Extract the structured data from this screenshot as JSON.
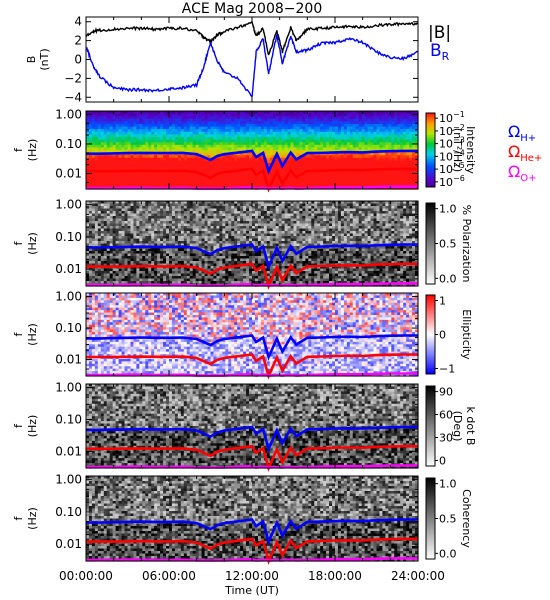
{
  "title": "ACE Mag 2008−200",
  "x_axis": {
    "label": "Time (UT)",
    "ticks": [
      "00:00:00",
      "06:00:00",
      "12:00:00",
      "18:00:00",
      "24:00:00"
    ],
    "range_hours": [
      0,
      24
    ]
  },
  "colors": {
    "B_total": "#000000",
    "B_R": "#0000ff",
    "H_gyro": "#0000ff",
    "He_gyro": "#ff0000",
    "O_gyro": "#ff00ff"
  },
  "chart_data": [
    {
      "type": "line",
      "panel": "field",
      "ylabel": [
        "B",
        "(nT)"
      ],
      "yticks": [
        "4",
        "2",
        "0",
        "−2",
        "−4"
      ],
      "ylim": [
        -4.5,
        4.5
      ],
      "legend": [
        {
          "label": "|B|",
          "color": "#000000"
        },
        {
          "label": "B",
          "sub": "R",
          "color": "#0000ff"
        }
      ],
      "series": [
        {
          "name": "|B|",
          "x": [
            0,
            0.5,
            1,
            2,
            3,
            4,
            5,
            6,
            7,
            8,
            8.5,
            9,
            9.5,
            10,
            11,
            12,
            12.3,
            12.8,
            13.2,
            13.8,
            14.2,
            14.8,
            15.2,
            16,
            17,
            18,
            19,
            20,
            21,
            22,
            23,
            24
          ],
          "y": [
            2.4,
            3.0,
            3.1,
            3.2,
            3.3,
            3.3,
            3.2,
            3.3,
            3.3,
            3.0,
            2.4,
            1.9,
            2.6,
            3.0,
            3.4,
            3.9,
            2.5,
            3.3,
            0.5,
            3.0,
            0.8,
            3.4,
            2.0,
            3.2,
            3.3,
            3.4,
            3.5,
            3.4,
            3.6,
            3.7,
            3.8,
            3.8
          ]
        },
        {
          "name": "B_R",
          "x": [
            0,
            0.5,
            1,
            2,
            3,
            4,
            5,
            6,
            7,
            8,
            8.5,
            9,
            9.5,
            10,
            11,
            12,
            12.3,
            12.8,
            13.2,
            13.8,
            14.2,
            14.8,
            15.2,
            16,
            17,
            18,
            19,
            20,
            21,
            22,
            23,
            24
          ],
          "y": [
            1.4,
            -0.6,
            -1.8,
            -3.0,
            -3.2,
            -3.2,
            -3.3,
            -3.1,
            -3.0,
            -2.7,
            -0.8,
            1.8,
            -0.2,
            -1.4,
            -2.0,
            -4.0,
            0.8,
            2.2,
            -1.5,
            2.6,
            -0.4,
            2.4,
            0.8,
            1.0,
            1.7,
            1.8,
            2.2,
            1.8,
            0.8,
            0.2,
            0.1,
            0.8
          ]
        }
      ]
    },
    {
      "type": "heatmap",
      "panel": "power",
      "ylabel": [
        "f",
        "(Hz)"
      ],
      "yticks": [
        "1.00",
        "0.10",
        "0.01"
      ],
      "ylim_hz": [
        0.003,
        1.3
      ],
      "yscale": "log",
      "colorbar": {
        "label": "Intensity",
        "label2": "(nT²/Hz)",
        "ticks": [
          {
            "base": "10",
            "exp": "−1"
          },
          {
            "base": "10",
            "exp": "−2"
          },
          {
            "base": "10",
            "exp": "−3"
          },
          {
            "base": "10",
            "exp": "−4"
          },
          {
            "base": "10",
            "exp": "−5"
          },
          {
            "base": "10",
            "exp": "−6"
          }
        ],
        "colormap": "rainbow"
      },
      "legend": [
        {
          "label": "Ω",
          "sub": "H+",
          "color": "#0000ff"
        },
        {
          "label": "Ω",
          "sub": "He+",
          "color": "#ff0000"
        },
        {
          "label": "Ω",
          "sub": "O+",
          "color": "#ff00ff"
        }
      ]
    },
    {
      "type": "heatmap",
      "panel": "polarization",
      "ylabel": [
        "f",
        "(Hz)"
      ],
      "yticks": [
        "1.00",
        "0.10",
        "0.01"
      ],
      "colorbar": {
        "label": "% Polarization",
        "ticks": [
          "1.0",
          "0.5",
          "0.0"
        ],
        "colormap": "grey"
      }
    },
    {
      "type": "heatmap",
      "panel": "ellipticity",
      "ylabel": [
        "f",
        "(Hz)"
      ],
      "yticks": [
        "1.00",
        "0.10",
        "0.01"
      ],
      "colorbar": {
        "label": "Ellipticity",
        "ticks": [
          "1",
          "0",
          "−1"
        ],
        "colormap": "bwr"
      }
    },
    {
      "type": "heatmap",
      "panel": "kdotb",
      "ylabel": [
        "f",
        "(Hz)"
      ],
      "yticks": [
        "1.00",
        "0.10",
        "0.01"
      ],
      "colorbar": {
        "label": "k dot B",
        "label2": "(Deg)",
        "ticks": [
          "90",
          "60",
          "30",
          "0"
        ],
        "colormap": "grey"
      }
    },
    {
      "type": "heatmap",
      "panel": "coherency",
      "ylabel": [
        "f",
        "(Hz)"
      ],
      "yticks": [
        "1.00",
        "0.10",
        "0.01"
      ],
      "colorbar": {
        "label": "Coherency",
        "ticks": [
          "1.0",
          "0.5",
          "0.0"
        ],
        "colormap": "grey"
      }
    }
  ],
  "gyrofrequencies": {
    "x": [
      0,
      1,
      2,
      3,
      4,
      5,
      6,
      7,
      8,
      8.5,
      9,
      9.5,
      10,
      11,
      12,
      12.3,
      12.8,
      13.2,
      13.8,
      14.2,
      14.8,
      15.2,
      16,
      17,
      18,
      19,
      20,
      21,
      22,
      23,
      24
    ],
    "H_plus_hz": [
      0.047,
      0.047,
      0.048,
      0.049,
      0.05,
      0.049,
      0.049,
      0.05,
      0.045,
      0.036,
      0.029,
      0.039,
      0.045,
      0.051,
      0.058,
      0.036,
      0.05,
      0.012,
      0.046,
      0.018,
      0.051,
      0.03,
      0.049,
      0.05,
      0.052,
      0.053,
      0.052,
      0.055,
      0.057,
      0.058,
      0.058
    ],
    "He_plus_hz": [
      0.012,
      0.012,
      0.012,
      0.0122,
      0.0124,
      0.0122,
      0.0122,
      0.0124,
      0.0112,
      0.009,
      0.0072,
      0.0098,
      0.0112,
      0.0128,
      0.0145,
      0.009,
      0.0125,
      0.003,
      0.0115,
      0.0045,
      0.0128,
      0.0075,
      0.0122,
      0.0125,
      0.013,
      0.0132,
      0.013,
      0.0138,
      0.0142,
      0.0145,
      0.0145
    ],
    "O_plus_hz": [
      0.0032,
      0.0032,
      0.0032,
      0.0033,
      0.0033,
      0.0032,
      0.0032,
      0.0033,
      0.0031,
      0.0031,
      0.0031,
      0.0031,
      0.0031,
      0.0033,
      0.0034,
      0.0031,
      0.0033,
      0.0031,
      0.0032,
      0.0031,
      0.0033,
      0.0031,
      0.0032,
      0.0033,
      0.0034,
      0.0034,
      0.0034,
      0.0035,
      0.0036,
      0.0036,
      0.0036
    ]
  }
}
